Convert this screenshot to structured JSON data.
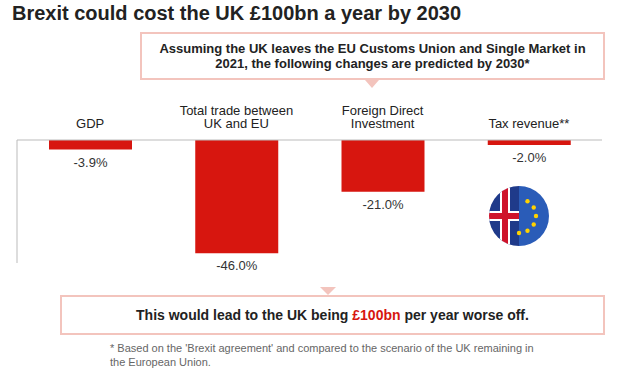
{
  "chart_data": {
    "type": "bar",
    "title": "Brexit could cost the UK £100bn a year by 2030",
    "subtitle": "Assuming the UK leaves the EU Customs Union and Single Market in 2021, the following changes are predicted by 2030*",
    "categories": [
      "GDP",
      "Total trade between UK and EU",
      "Foreign Direct Investment",
      "Tax revenue**"
    ],
    "values": [
      -3.9,
      -46.0,
      -21.0,
      -2.0
    ],
    "value_labels": [
      "-3.9%",
      "-46.0%",
      "-21.0%",
      "-2.0%"
    ],
    "color": "#d7160f",
    "data_labels": true,
    "tick_labels": false,
    "ylim": [
      -50,
      0
    ],
    "yticks": [],
    "annotation": [
      {
        "text": "This would lead to the UK being "
      },
      {
        "text": "£100bn",
        "color": "#d7160f"
      },
      {
        "text": " per year worse off."
      }
    ],
    "footnote": "* Based on the 'Brexit agreement' and compared to the scenario of the UK remaining in the European Union."
  }
}
